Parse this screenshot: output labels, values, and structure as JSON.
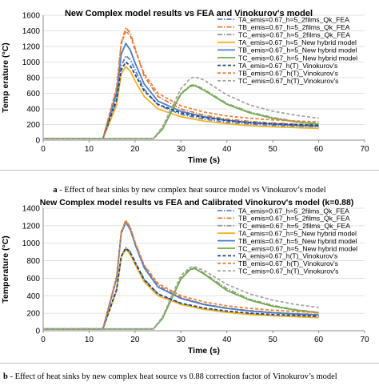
{
  "chart_data": [
    {
      "type": "line",
      "title": "New Complex model results vs FEA and Vinokurov's model",
      "xlabel": "Time (s)",
      "ylabel": "Temp erature (°C)",
      "xlim": [
        0,
        70
      ],
      "ylim": [
        0,
        1600
      ],
      "xticks": [
        0,
        10,
        20,
        30,
        40,
        50,
        60,
        70
      ],
      "yticks": [
        0,
        200,
        400,
        600,
        800,
        1000,
        1200,
        1400,
        1600
      ],
      "grid": "horizontal",
      "legend": "top-right",
      "series": [
        {
          "name": "TA_emis=0.67_h=5_2films_Qk_FEA",
          "color": "#5b7fc4",
          "dash": "dashdot",
          "x": [
            0,
            13,
            16,
            17,
            18,
            19,
            20,
            22,
            25,
            30,
            35,
            40,
            45,
            50,
            55,
            60
          ],
          "values": [
            20,
            20,
            500,
            950,
            1080,
            1030,
            900,
            650,
            450,
            330,
            270,
            230,
            205,
            190,
            180,
            170
          ]
        },
        {
          "name": "TB_emis=0.67_h=5_2films_Qk_FEA",
          "color": "#e07a3a",
          "dash": "dashdot",
          "x": [
            0,
            13,
            16,
            17,
            18,
            19,
            20,
            22,
            25,
            30,
            35,
            40,
            45,
            50,
            55,
            60
          ],
          "values": [
            20,
            20,
            650,
            1250,
            1440,
            1370,
            1180,
            820,
            560,
            400,
            320,
            270,
            240,
            220,
            205,
            195
          ]
        },
        {
          "name": "TC_emis=0.67_h=5_2films_Qk_FEA",
          "color": "#9a9a9a",
          "dash": "dashdot",
          "x": [
            0,
            24,
            26,
            28,
            30,
            32,
            33,
            35,
            40,
            45,
            50,
            55,
            60
          ],
          "values": [
            20,
            20,
            150,
            380,
            600,
            700,
            710,
            650,
            470,
            360,
            290,
            240,
            210
          ]
        },
        {
          "name": "TA_emis=0.67_h=5_New hybrid model",
          "color": "#f2b21e",
          "dash": "solid",
          "x": [
            0,
            13,
            16,
            17,
            18,
            19,
            20,
            22,
            25,
            30,
            35,
            40,
            45,
            50,
            55,
            60
          ],
          "values": [
            20,
            20,
            450,
            850,
            940,
            880,
            760,
            560,
            400,
            300,
            245,
            210,
            185,
            170,
            160,
            150
          ]
        },
        {
          "name": "TB_emis=0.67_h=5_New hybrid model",
          "color": "#4a7cc9",
          "dash": "solid",
          "x": [
            0,
            13,
            16,
            17,
            18,
            19,
            20,
            22,
            25,
            30,
            35,
            40,
            45,
            50,
            55,
            60
          ],
          "values": [
            20,
            20,
            600,
            1100,
            1240,
            1150,
            990,
            720,
            500,
            370,
            300,
            255,
            225,
            205,
            190,
            180
          ]
        },
        {
          "name": "TC_emis=0.67_h=5_New hybrid model",
          "color": "#70ad47",
          "dash": "solid",
          "x": [
            0,
            24,
            26,
            28,
            30,
            32,
            33,
            35,
            40,
            45,
            50,
            55,
            60
          ],
          "values": [
            20,
            20,
            140,
            370,
            590,
            690,
            700,
            640,
            460,
            350,
            280,
            235,
            205
          ]
        },
        {
          "name": "TA_emis=0.67_h(T)_Vinokurov's",
          "color": "#264478",
          "dash": "dashed",
          "x": [
            0,
            13,
            16,
            17,
            18,
            19,
            20,
            22,
            25,
            30,
            35,
            40,
            45,
            50,
            55,
            60
          ],
          "values": [
            20,
            20,
            520,
            900,
            1000,
            950,
            840,
            630,
            460,
            350,
            290,
            250,
            225,
            210,
            200,
            190
          ]
        },
        {
          "name": "TB_emis=0.67_h(T)_Vinokurov's",
          "color": "#e8813d",
          "dash": "dashed",
          "x": [
            0,
            13,
            16,
            17,
            18,
            19,
            20,
            22,
            25,
            30,
            35,
            40,
            45,
            50,
            55,
            60
          ],
          "values": [
            20,
            20,
            680,
            1230,
            1400,
            1330,
            1160,
            850,
            600,
            440,
            360,
            310,
            280,
            260,
            245,
            235
          ]
        },
        {
          "name": "TC_emis=0.67_h(T)_Vinokurov's",
          "color": "#a5a5a5",
          "dash": "dashed",
          "x": [
            0,
            24,
            26,
            28,
            30,
            32,
            33,
            35,
            40,
            45,
            50,
            55,
            60
          ],
          "values": [
            20,
            20,
            170,
            420,
            660,
            790,
            810,
            770,
            580,
            450,
            370,
            320,
            280
          ]
        }
      ]
    },
    {
      "type": "line",
      "title": "New Complex model results vs FEA and Calibrated Vinokurov's model (k=0.88)",
      "xlabel": "Time (s)",
      "ylabel": "Temperature (°C)",
      "xlim": [
        0,
        70
      ],
      "ylim": [
        0,
        1400
      ],
      "xticks": [
        0,
        10,
        20,
        30,
        40,
        50,
        60,
        70
      ],
      "yticks": [
        0,
        200,
        400,
        600,
        800,
        1000,
        1200,
        1400
      ],
      "grid": "horizontal",
      "legend": "top-right",
      "series": [
        {
          "name": "TA_emis=0.67_h=5_2films_Qk_FEA",
          "color": "#5b7fc4",
          "dash": "dashdot",
          "x": [
            0,
            13,
            16,
            17,
            18,
            19,
            20,
            22,
            25,
            30,
            35,
            40,
            45,
            50,
            55,
            60
          ],
          "values": [
            20,
            20,
            480,
            850,
            950,
            900,
            790,
            590,
            420,
            310,
            250,
            215,
            190,
            175,
            165,
            155
          ]
        },
        {
          "name": "TB_emis=0.67_h=5_2films_Qk_FEA",
          "color": "#e07a3a",
          "dash": "dashdot",
          "x": [
            0,
            13,
            16,
            17,
            18,
            19,
            20,
            22,
            25,
            30,
            35,
            40,
            45,
            50,
            55,
            60
          ],
          "values": [
            20,
            20,
            620,
            1130,
            1265,
            1180,
            1010,
            740,
            520,
            380,
            305,
            260,
            230,
            210,
            195,
            185
          ]
        },
        {
          "name": "TC_emis=0.67_h=5_2films_Qk_FEA",
          "color": "#9a9a9a",
          "dash": "dashdot",
          "x": [
            0,
            24,
            26,
            28,
            30,
            32,
            33,
            35,
            40,
            45,
            50,
            55,
            60
          ],
          "values": [
            20,
            20,
            150,
            380,
            600,
            710,
            720,
            660,
            480,
            360,
            290,
            240,
            210
          ]
        },
        {
          "name": "TA_emis=0.67_h=5_New hybrid model",
          "color": "#f2b21e",
          "dash": "solid",
          "x": [
            0,
            13,
            16,
            17,
            18,
            19,
            20,
            22,
            25,
            30,
            35,
            40,
            45,
            50,
            55,
            60
          ],
          "values": [
            20,
            20,
            460,
            840,
            930,
            870,
            760,
            560,
            400,
            300,
            245,
            210,
            185,
            170,
            160,
            150
          ]
        },
        {
          "name": "TB_emis=0.67_h=5_New hybrid model",
          "color": "#4a7cc9",
          "dash": "solid",
          "x": [
            0,
            13,
            16,
            17,
            18,
            19,
            20,
            22,
            25,
            30,
            35,
            40,
            45,
            50,
            55,
            60
          ],
          "values": [
            20,
            20,
            600,
            1110,
            1240,
            1150,
            990,
            720,
            500,
            370,
            300,
            255,
            225,
            205,
            190,
            180
          ]
        },
        {
          "name": "TC_emis=0.67_h=5_New hybrid model",
          "color": "#70ad47",
          "dash": "solid",
          "x": [
            0,
            24,
            26,
            28,
            30,
            32,
            33,
            35,
            40,
            45,
            50,
            55,
            60
          ],
          "values": [
            20,
            20,
            140,
            370,
            590,
            700,
            710,
            650,
            460,
            350,
            280,
            235,
            205
          ]
        },
        {
          "name": "TA_emis=0.67_h(T)_Vinokurov's",
          "color": "#264478",
          "dash": "dashed",
          "x": [
            0,
            13,
            16,
            17,
            18,
            19,
            20,
            22,
            25,
            30,
            35,
            40,
            45,
            50,
            55,
            60
          ],
          "values": [
            20,
            20,
            470,
            850,
            945,
            890,
            780,
            580,
            420,
            315,
            260,
            225,
            200,
            185,
            175,
            165
          ]
        },
        {
          "name": "TB_emis=0.67_h(T)_Vinokurov's",
          "color": "#e8813d",
          "dash": "dashed",
          "x": [
            0,
            13,
            16,
            17,
            18,
            19,
            20,
            22,
            25,
            30,
            35,
            40,
            45,
            50,
            55,
            60
          ],
          "values": [
            20,
            20,
            610,
            1120,
            1255,
            1170,
            1010,
            750,
            540,
            400,
            330,
            285,
            255,
            235,
            220,
            210
          ]
        },
        {
          "name": "TC_emis=0.67_h(T)_Vinokurov's",
          "color": "#a5a5a5",
          "dash": "dashed",
          "x": [
            0,
            24,
            26,
            28,
            30,
            32,
            33,
            35,
            40,
            45,
            50,
            55,
            60
          ],
          "values": [
            20,
            20,
            160,
            400,
            630,
            725,
            730,
            690,
            530,
            420,
            350,
            300,
            265
          ]
        }
      ]
    }
  ],
  "captions": {
    "a_label": "a",
    "a_text": " - Effect of heat sinks by new complex heat source model vs Vinokurov’s model",
    "b_label": "b",
    "b_text": " - Effect of heat sinks by new complex heat source vs 0.88 correction factor of Vinokurov’s model"
  }
}
